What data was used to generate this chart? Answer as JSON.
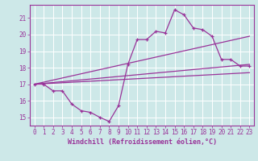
{
  "xlabel": "Windchill (Refroidissement éolien,°C)",
  "bg_color": "#cde8e8",
  "grid_color": "#b8d8d8",
  "line_color": "#993399",
  "xlim": [
    -0.5,
    23.5
  ],
  "ylim": [
    14.5,
    21.8
  ],
  "xticks": [
    0,
    1,
    2,
    3,
    4,
    5,
    6,
    7,
    8,
    9,
    10,
    11,
    12,
    13,
    14,
    15,
    16,
    17,
    18,
    19,
    20,
    21,
    22,
    23
  ],
  "yticks": [
    15,
    16,
    17,
    18,
    19,
    20,
    21
  ],
  "line1_x": [
    0,
    1,
    2,
    3,
    4,
    5,
    6,
    7,
    8,
    9,
    10,
    11,
    12,
    13,
    14,
    15,
    16,
    17,
    18,
    19,
    20,
    21,
    22,
    23
  ],
  "line1_y": [
    17.0,
    17.0,
    16.6,
    16.6,
    15.8,
    15.4,
    15.3,
    15.0,
    14.75,
    15.7,
    18.2,
    19.7,
    19.7,
    20.2,
    20.1,
    21.5,
    21.2,
    20.4,
    20.3,
    19.9,
    18.5,
    18.5,
    18.1,
    18.1
  ],
  "line2_x": [
    0,
    23
  ],
  "line2_y": [
    17.0,
    19.9
  ],
  "line3_x": [
    0,
    23
  ],
  "line3_y": [
    17.0,
    17.7
  ],
  "line4_x": [
    0,
    23
  ],
  "line4_y": [
    17.0,
    18.2
  ],
  "font_size_ticks": 5.5,
  "font_size_xlabel": 6.0
}
